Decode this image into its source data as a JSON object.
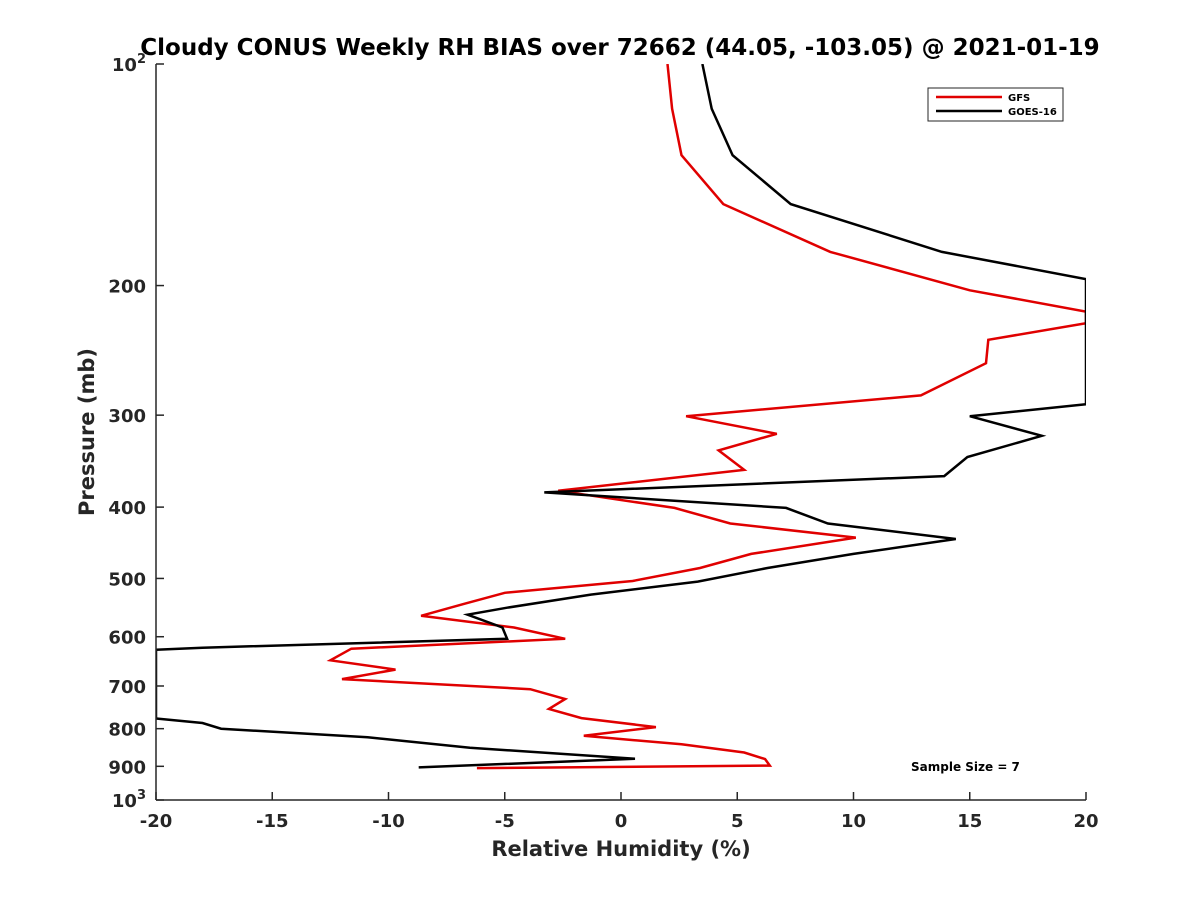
{
  "chart_data": {
    "type": "line",
    "title": "Cloudy CONUS Weekly RH BIAS over 72662 (44.05, -103.05) @ 2021-01-19",
    "xlabel": "Relative Humidity (%)",
    "ylabel": "Pressure (mb)",
    "xlim": [
      -20,
      20
    ],
    "ylim": [
      100,
      1000
    ],
    "yscale": "log",
    "y_reversed": true,
    "grid": false,
    "legend_position": "top-right",
    "x_ticks": [
      "-20",
      "-15",
      "-10",
      "-5",
      "0",
      "5",
      "10",
      "15",
      "20"
    ],
    "x_tick_values": [
      -20,
      -15,
      -10,
      -5,
      0,
      5,
      10,
      15,
      20
    ],
    "y_ticks": [
      {
        "value": 100,
        "label": "10",
        "sup": "2"
      },
      {
        "value": 200,
        "label": "200",
        "sup": ""
      },
      {
        "value": 300,
        "label": "300",
        "sup": ""
      },
      {
        "value": 400,
        "label": "400",
        "sup": ""
      },
      {
        "value": 500,
        "label": "500",
        "sup": ""
      },
      {
        "value": 600,
        "label": "600",
        "sup": ""
      },
      {
        "value": 700,
        "label": "700",
        "sup": ""
      },
      {
        "value": 800,
        "label": "800",
        "sup": ""
      },
      {
        "value": 900,
        "label": "900",
        "sup": ""
      },
      {
        "value": 1000,
        "label": "10",
        "sup": "3"
      }
    ],
    "annotation": "Sample Size = 7",
    "series": [
      {
        "name": "GFS",
        "color": "#e00000",
        "points": [
          [
            2.0,
            100
          ],
          [
            2.2,
            115
          ],
          [
            2.6,
            133
          ],
          [
            4.4,
            155
          ],
          [
            9.0,
            180
          ],
          [
            15.0,
            203
          ],
          [
            20.0,
            217
          ],
          [
            20.0,
            225
          ],
          [
            15.8,
            237
          ],
          [
            15.7,
            255
          ],
          [
            12.9,
            282
          ],
          [
            2.8,
            301
          ],
          [
            6.7,
            318
          ],
          [
            4.2,
            335
          ],
          [
            5.3,
            356
          ],
          [
            -2.7,
            380
          ],
          [
            2.3,
            401
          ],
          [
            4.7,
            421
          ],
          [
            10.1,
            440
          ],
          [
            5.6,
            463
          ],
          [
            3.4,
            484
          ],
          [
            0.5,
            504
          ],
          [
            -5.0,
            523
          ],
          [
            -6.8,
            542
          ],
          [
            -8.6,
            562
          ],
          [
            -4.6,
            583
          ],
          [
            -2.4,
            604
          ],
          [
            -11.6,
            623
          ],
          [
            -12.5,
            646
          ],
          [
            -9.7,
            665
          ],
          [
            -12.0,
            685
          ],
          [
            -3.9,
            707
          ],
          [
            -2.4,
            729
          ],
          [
            -3.1,
            752
          ],
          [
            -1.7,
            774
          ],
          [
            1.5,
            796
          ],
          [
            -1.6,
            818
          ],
          [
            2.6,
            840
          ],
          [
            5.3,
            862
          ],
          [
            6.2,
            880
          ],
          [
            6.4,
            898
          ],
          [
            -6.2,
            905
          ]
        ]
      },
      {
        "name": "GOES-16",
        "color": "#000000",
        "points": [
          [
            3.5,
            100
          ],
          [
            3.9,
            115
          ],
          [
            4.8,
            133
          ],
          [
            7.3,
            155
          ],
          [
            13.8,
            180
          ],
          [
            20.0,
            196
          ],
          [
            20.0,
            290
          ],
          [
            15.0,
            301
          ],
          [
            18.1,
            320
          ],
          [
            14.9,
            342
          ],
          [
            13.9,
            363
          ],
          [
            -3.3,
            382
          ],
          [
            7.1,
            401
          ],
          [
            8.9,
            421
          ],
          [
            14.4,
            442
          ],
          [
            10.0,
            463
          ],
          [
            6.3,
            484
          ],
          [
            3.3,
            505
          ],
          [
            -1.3,
            526
          ],
          [
            -4.9,
            548
          ],
          [
            -6.6,
            560
          ],
          [
            -5.1,
            583
          ],
          [
            -4.9,
            604
          ],
          [
            -18.0,
            621
          ],
          [
            -20.0,
            625
          ],
          [
            -20.0,
            775
          ],
          [
            -18.0,
            786
          ],
          [
            -17.2,
            800
          ],
          [
            -10.9,
            822
          ],
          [
            -6.5,
            849
          ],
          [
            0.6,
            879
          ],
          [
            -8.7,
            903
          ]
        ]
      }
    ]
  }
}
